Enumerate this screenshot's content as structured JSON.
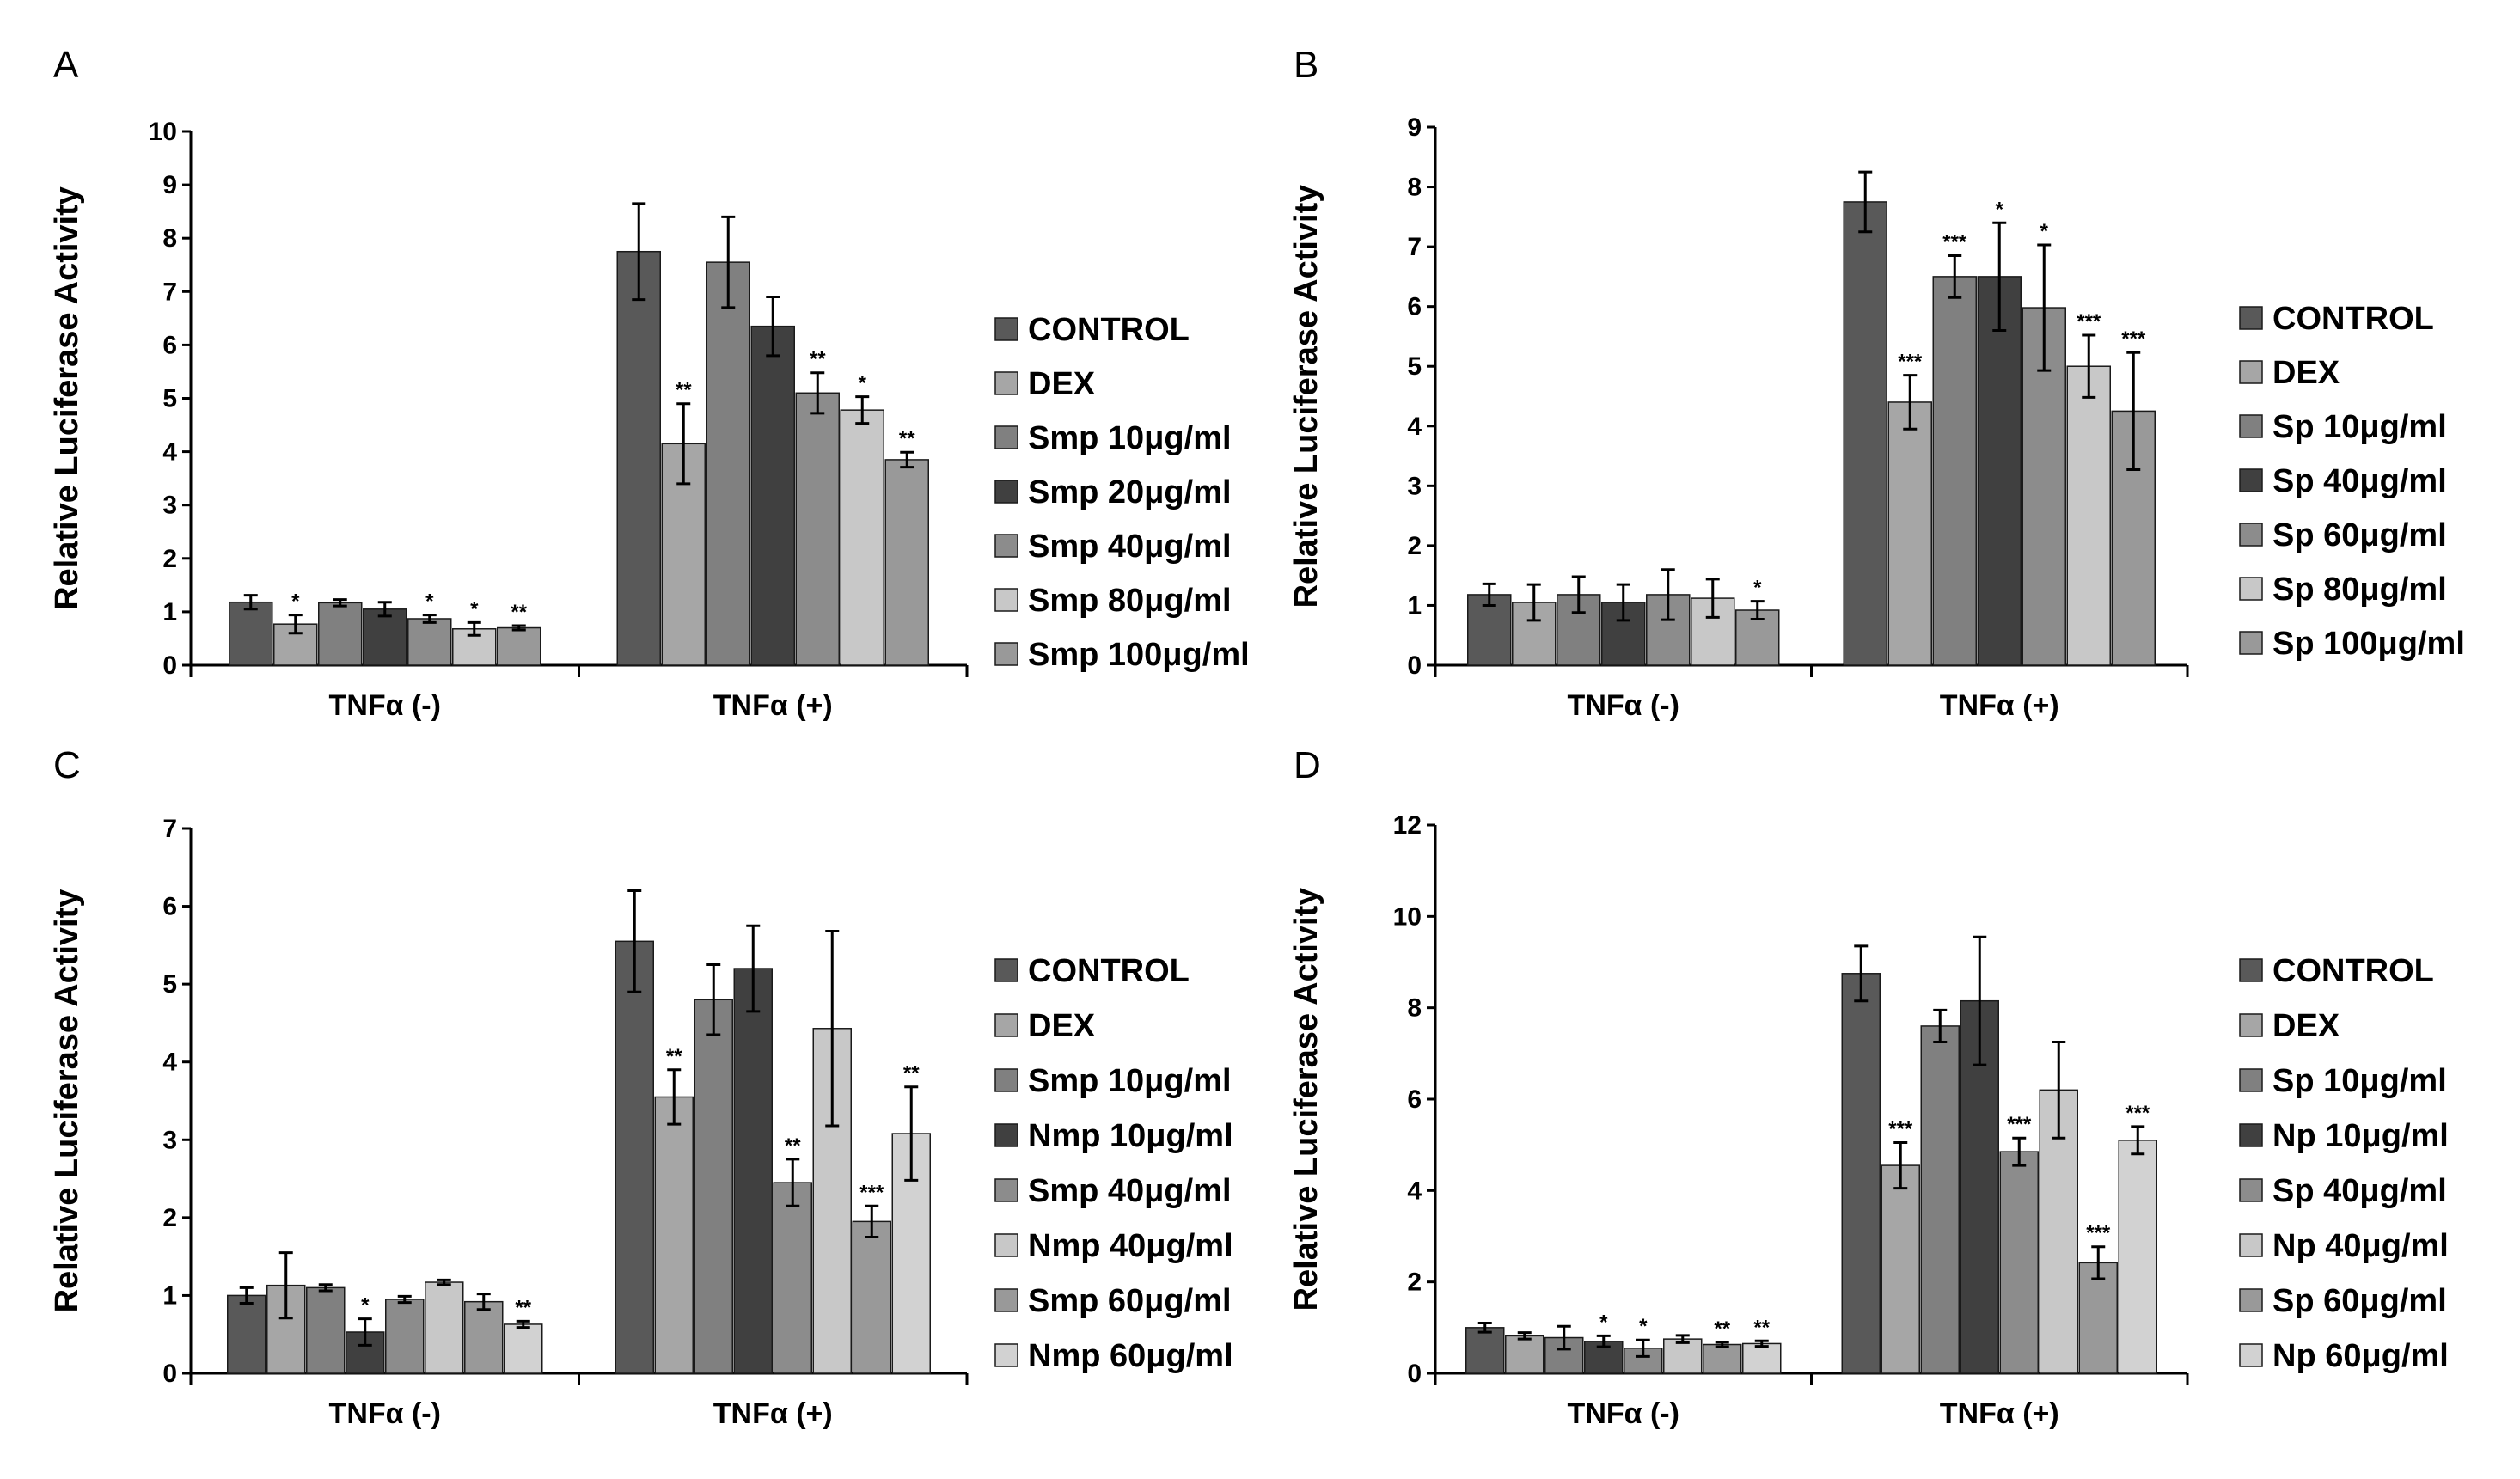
{
  "chart_data": [
    {
      "type": "bar",
      "panel": "A",
      "ylabel": "Relative Luciferase Activity",
      "ylim": [
        0,
        10
      ],
      "yticks": [
        "0",
        "1",
        "2",
        "3",
        "4",
        "5",
        "6",
        "7",
        "8",
        "9",
        "10"
      ],
      "categories": [
        "TNFα (-)",
        "TNFα (+)"
      ],
      "series": [
        {
          "name": "CONTROL",
          "color": "#595959",
          "values": [
            1.18,
            7.75
          ],
          "errors": [
            0.13,
            0.9
          ],
          "sig": [
            "",
            ""
          ]
        },
        {
          "name": "DEX",
          "color": "#a6a6a6",
          "values": [
            0.77,
            4.15
          ],
          "errors": [
            0.17,
            0.75
          ],
          "sig": [
            "*",
            "**"
          ]
        },
        {
          "name": "Smp 10μg/ml",
          "color": "#808080",
          "values": [
            1.17,
            7.55
          ],
          "errors": [
            0.06,
            0.85
          ],
          "sig": [
            "",
            ""
          ]
        },
        {
          "name": "Smp 20μg/ml",
          "color": "#404040",
          "values": [
            1.05,
            6.35
          ],
          "errors": [
            0.13,
            0.55
          ],
          "sig": [
            "",
            ""
          ]
        },
        {
          "name": "Smp 40μg/ml",
          "color": "#8c8c8c",
          "values": [
            0.87,
            5.1
          ],
          "errors": [
            0.07,
            0.38
          ],
          "sig": [
            "*",
            "**"
          ]
        },
        {
          "name": "Smp 80μg/ml",
          "color": "#c8c8c8",
          "values": [
            0.68,
            4.78
          ],
          "errors": [
            0.12,
            0.25
          ],
          "sig": [
            "*",
            "*"
          ]
        },
        {
          "name": "Smp 100μg/ml",
          "color": "#999999",
          "values": [
            0.7,
            3.85
          ],
          "errors": [
            0.04,
            0.14
          ],
          "sig": [
            "**",
            "**"
          ]
        }
      ]
    },
    {
      "type": "bar",
      "panel": "B",
      "ylabel": "Relative Luciferase Activity",
      "ylim": [
        0,
        9
      ],
      "yticks": [
        "0",
        "1",
        "2",
        "3",
        "4",
        "5",
        "6",
        "7",
        "8",
        "9"
      ],
      "categories": [
        "TNFα (-)",
        "TNFα (+)"
      ],
      "series": [
        {
          "name": "CONTROL",
          "color": "#595959",
          "values": [
            1.18,
            7.75
          ],
          "errors": [
            0.18,
            0.5
          ],
          "sig": [
            "",
            ""
          ]
        },
        {
          "name": "DEX",
          "color": "#a6a6a6",
          "values": [
            1.05,
            4.4
          ],
          "errors": [
            0.3,
            0.45
          ],
          "sig": [
            "",
            "***"
          ]
        },
        {
          "name": "Sp 10μg/ml",
          "color": "#808080",
          "values": [
            1.18,
            6.5
          ],
          "errors": [
            0.3,
            0.35
          ],
          "sig": [
            "",
            "***"
          ]
        },
        {
          "name": "Sp 40μg/ml",
          "color": "#404040",
          "values": [
            1.05,
            6.5
          ],
          "errors": [
            0.3,
            0.9
          ],
          "sig": [
            "",
            "*"
          ]
        },
        {
          "name": "Sp 60μg/ml",
          "color": "#8c8c8c",
          "values": [
            1.18,
            5.98
          ],
          "errors": [
            0.42,
            1.05
          ],
          "sig": [
            "",
            "*"
          ]
        },
        {
          "name": "Sp 80μg/ml",
          "color": "#c8c8c8",
          "values": [
            1.12,
            5.0
          ],
          "errors": [
            0.32,
            0.52
          ],
          "sig": [
            "",
            "***"
          ]
        },
        {
          "name": "Sp 100μg/ml",
          "color": "#999999",
          "values": [
            0.92,
            4.25
          ],
          "errors": [
            0.15,
            0.98
          ],
          "sig": [
            "*",
            "***"
          ]
        }
      ]
    },
    {
      "type": "bar",
      "panel": "C",
      "ylabel": "Relative Luciferase Activity",
      "ylim": [
        0,
        7
      ],
      "yticks": [
        "0",
        "1",
        "2",
        "3",
        "4",
        "5",
        "6",
        "7"
      ],
      "categories": [
        "TNFα (-)",
        "TNFα (+)"
      ],
      "series": [
        {
          "name": "CONTROL",
          "color": "#595959",
          "values": [
            1.0,
            5.55
          ],
          "errors": [
            0.1,
            0.65
          ],
          "sig": [
            "",
            ""
          ]
        },
        {
          "name": "DEX",
          "color": "#a6a6a6",
          "values": [
            1.13,
            3.55
          ],
          "errors": [
            0.42,
            0.35
          ],
          "sig": [
            "",
            "**"
          ]
        },
        {
          "name": "Smp 10μg/ml",
          "color": "#808080",
          "values": [
            1.1,
            4.8
          ],
          "errors": [
            0.04,
            0.45
          ],
          "sig": [
            "",
            ""
          ]
        },
        {
          "name": "Nmp 10μg/ml",
          "color": "#404040",
          "values": [
            0.53,
            5.2
          ],
          "errors": [
            0.17,
            0.55
          ],
          "sig": [
            "*",
            ""
          ]
        },
        {
          "name": "Smp 40μg/ml",
          "color": "#8c8c8c",
          "values": [
            0.95,
            2.45
          ],
          "errors": [
            0.04,
            0.3
          ],
          "sig": [
            "",
            "**"
          ]
        },
        {
          "name": "Nmp 40μg/ml",
          "color": "#c8c8c8",
          "values": [
            1.17,
            4.43
          ],
          "errors": [
            0.03,
            1.25
          ],
          "sig": [
            "",
            ""
          ]
        },
        {
          "name": "Smp 60μg/ml",
          "color": "#999999",
          "values": [
            0.92,
            1.95
          ],
          "errors": [
            0.1,
            0.2
          ],
          "sig": [
            "",
            "***"
          ]
        },
        {
          "name": "Nmp 60μg/ml",
          "color": "#d2d2d2",
          "values": [
            0.63,
            3.08
          ],
          "errors": [
            0.04,
            0.6
          ],
          "sig": [
            "**",
            "**"
          ]
        }
      ]
    },
    {
      "type": "bar",
      "panel": "D",
      "ylabel": "Relative Luciferase Activity",
      "ylim": [
        0,
        12
      ],
      "yticks": [
        "0",
        "2",
        "4",
        "6",
        "8",
        "10",
        "12"
      ],
      "categories": [
        "TNFα (-)",
        "TNFα (+)"
      ],
      "series": [
        {
          "name": "CONTROL",
          "color": "#595959",
          "values": [
            1.0,
            8.75
          ],
          "errors": [
            0.1,
            0.6
          ],
          "sig": [
            "",
            ""
          ]
        },
        {
          "name": "DEX",
          "color": "#a6a6a6",
          "values": [
            0.82,
            4.55
          ],
          "errors": [
            0.07,
            0.5
          ],
          "sig": [
            "",
            "***"
          ]
        },
        {
          "name": "Sp 10μg/ml",
          "color": "#808080",
          "values": [
            0.78,
            7.6
          ],
          "errors": [
            0.25,
            0.35
          ],
          "sig": [
            "",
            ""
          ]
        },
        {
          "name": "Np 10μg/ml",
          "color": "#404040",
          "values": [
            0.7,
            8.15
          ],
          "errors": [
            0.12,
            1.4
          ],
          "sig": [
            "*",
            ""
          ]
        },
        {
          "name": "Sp 40μg/ml",
          "color": "#8c8c8c",
          "values": [
            0.55,
            4.85
          ],
          "errors": [
            0.18,
            0.3
          ],
          "sig": [
            "*",
            "***"
          ]
        },
        {
          "name": "Np 40μg/ml",
          "color": "#c8c8c8",
          "values": [
            0.75,
            6.2
          ],
          "errors": [
            0.08,
            1.05
          ],
          "sig": [
            "",
            ""
          ]
        },
        {
          "name": "Sp 60μg/ml",
          "color": "#999999",
          "values": [
            0.63,
            2.42
          ],
          "errors": [
            0.05,
            0.35
          ],
          "sig": [
            "**",
            "***"
          ]
        },
        {
          "name": "Np 60μg/ml",
          "color": "#d2d2d2",
          "values": [
            0.65,
            5.1
          ],
          "errors": [
            0.06,
            0.3
          ],
          "sig": [
            "**",
            "***"
          ]
        }
      ]
    }
  ]
}
